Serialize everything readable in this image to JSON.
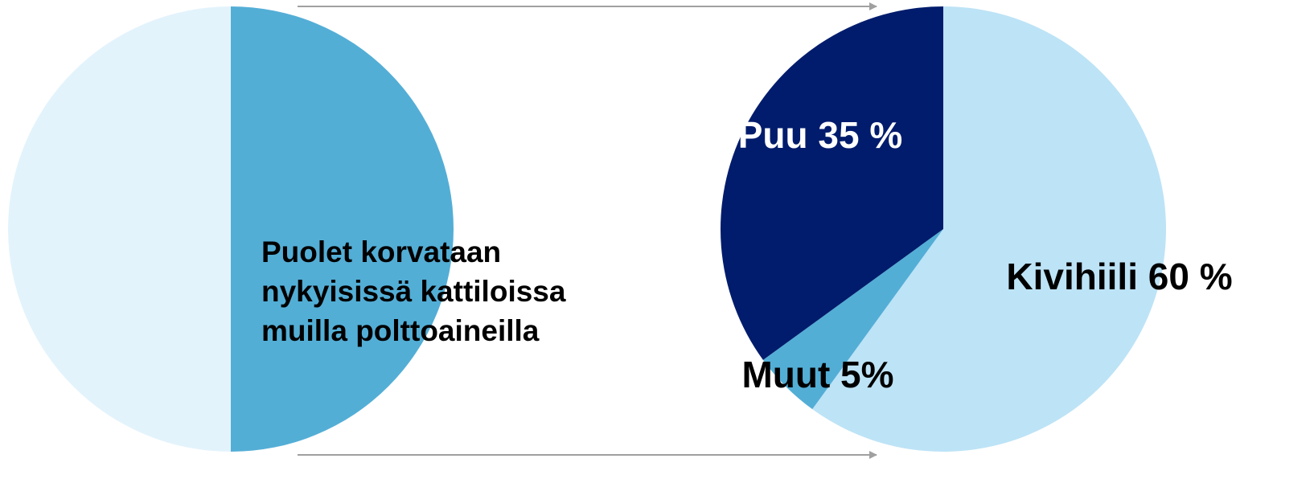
{
  "chart_data": [
    {
      "type": "pie",
      "values": [
        50,
        50
      ],
      "colors": [
        "#53aed6",
        "#e3f3fc"
      ],
      "annotation": [
        "Puolet korvataan",
        "nykyisissä kattiloissa",
        "muilla polttoaineilla"
      ]
    },
    {
      "type": "pie",
      "values": [
        60,
        5,
        35
      ],
      "colors": [
        "#bde3f6",
        "#53aed6",
        "#011c6c"
      ],
      "value_labels": [
        "Kivihiili 60 %",
        "Muut 5%",
        "Puu 35 %"
      ],
      "label_colors": [
        "#000000",
        "#000000",
        "#ffffff"
      ]
    }
  ]
}
